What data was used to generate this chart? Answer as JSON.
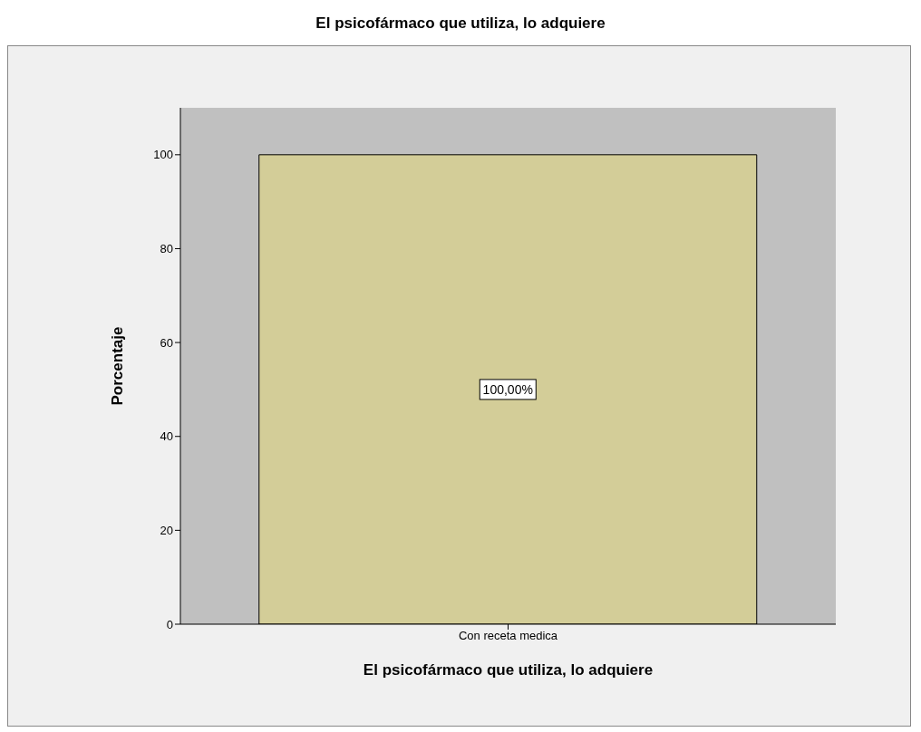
{
  "chart_data": {
    "type": "bar",
    "title": "El psicofármaco que utiliza, lo adquiere",
    "xlabel": "El psicofármaco que utiliza, lo adquiere",
    "ylabel": "Porcentaje",
    "categories": [
      "Con receta medica"
    ],
    "values": [
      100
    ],
    "color": "#d3cd98",
    "value_labels": [
      "100,00%"
    ],
    "ylim": [
      0,
      110
    ],
    "yticks": [
      0,
      20,
      40,
      60,
      80,
      100
    ],
    "grid": false
  }
}
